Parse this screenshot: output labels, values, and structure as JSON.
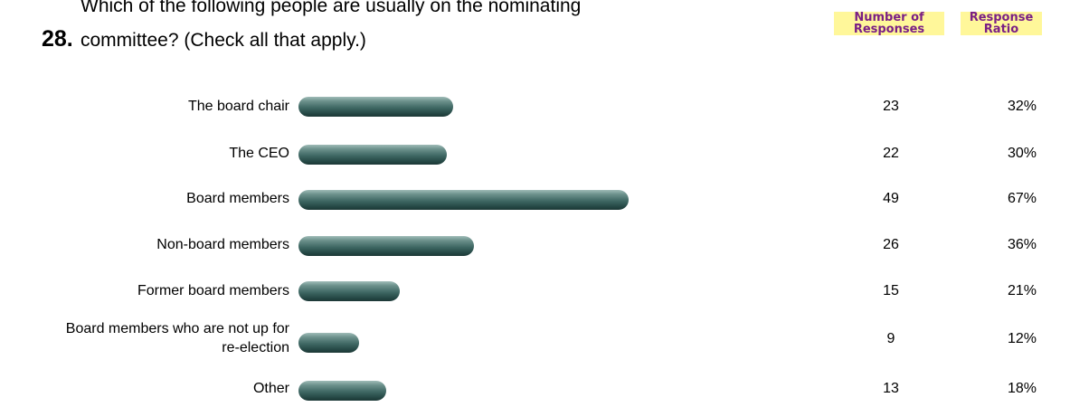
{
  "question": {
    "number": "28.",
    "text_line1": "Which of the following people are usually on the nominating",
    "text_line2": "committee? (Check all that apply.)"
  },
  "headers": {
    "count_line1": "Number of",
    "count_line2": "Responses",
    "ratio_line1": "Response",
    "ratio_line2": "Ratio"
  },
  "colors": {
    "bar": "#3f6864",
    "header_text": "#7a1f85",
    "header_bg": "#fff79a"
  },
  "chart_data": {
    "type": "bar",
    "orientation": "horizontal",
    "categories": [
      "The board chair",
      "The CEO",
      "Board members",
      "Non-board members",
      "Former board members",
      "Board members who are not up for re-election",
      "Other"
    ],
    "series": [
      {
        "values": [
          23,
          22,
          49,
          26,
          15,
          9,
          13
        ]
      }
    ],
    "ratios": [
      "32%",
      "30%",
      "67%",
      "36%",
      "21%",
      "12%",
      "18%"
    ],
    "rows": [
      {
        "label": "The board chair",
        "count": "23",
        "ratio": "32%"
      },
      {
        "label": "The CEO",
        "count": "22",
        "ratio": "30%"
      },
      {
        "label": "Board members",
        "count": "49",
        "ratio": "67%"
      },
      {
        "label": "Non-board members",
        "count": "26",
        "ratio": "36%"
      },
      {
        "label": "Former board members",
        "count": "15",
        "ratio": "21%"
      },
      {
        "label_line1": "Board members who are not up for",
        "label_line2": "re-election",
        "count": "9",
        "ratio": "12%"
      },
      {
        "label": "Other",
        "count": "13",
        "ratio": "18%"
      }
    ]
  }
}
